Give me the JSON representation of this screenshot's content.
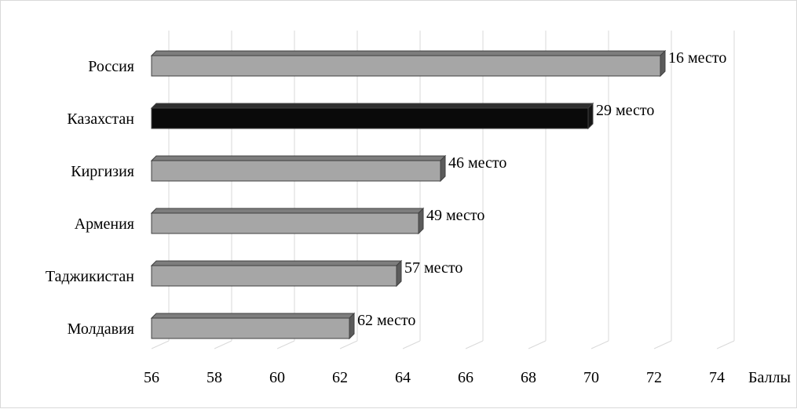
{
  "chart_data": {
    "type": "bar",
    "orientation": "horizontal",
    "style": "3d",
    "categories": [
      "Россия",
      "Казахстан",
      "Киргизия",
      "Армения",
      "Таджикистан",
      "Молдавия"
    ],
    "values": [
      72.2,
      69.9,
      65.2,
      64.5,
      63.8,
      62.3
    ],
    "data_labels": [
      "16 место",
      "29 место",
      "46 место",
      "49 место",
      "57 место",
      "62 место"
    ],
    "bar_colors": [
      "#a6a6a6",
      "#0a0a0a",
      "#a6a6a6",
      "#a6a6a6",
      "#a6a6a6",
      "#a6a6a6"
    ],
    "highlight_category": "Казахстан",
    "title": "",
    "xlabel": "Баллы",
    "ylabel": "",
    "xlim": [
      56,
      74
    ],
    "xticks": [
      56,
      58,
      60,
      62,
      64,
      66,
      68,
      70,
      72,
      74
    ],
    "grid": "vertical",
    "legend": "none"
  }
}
